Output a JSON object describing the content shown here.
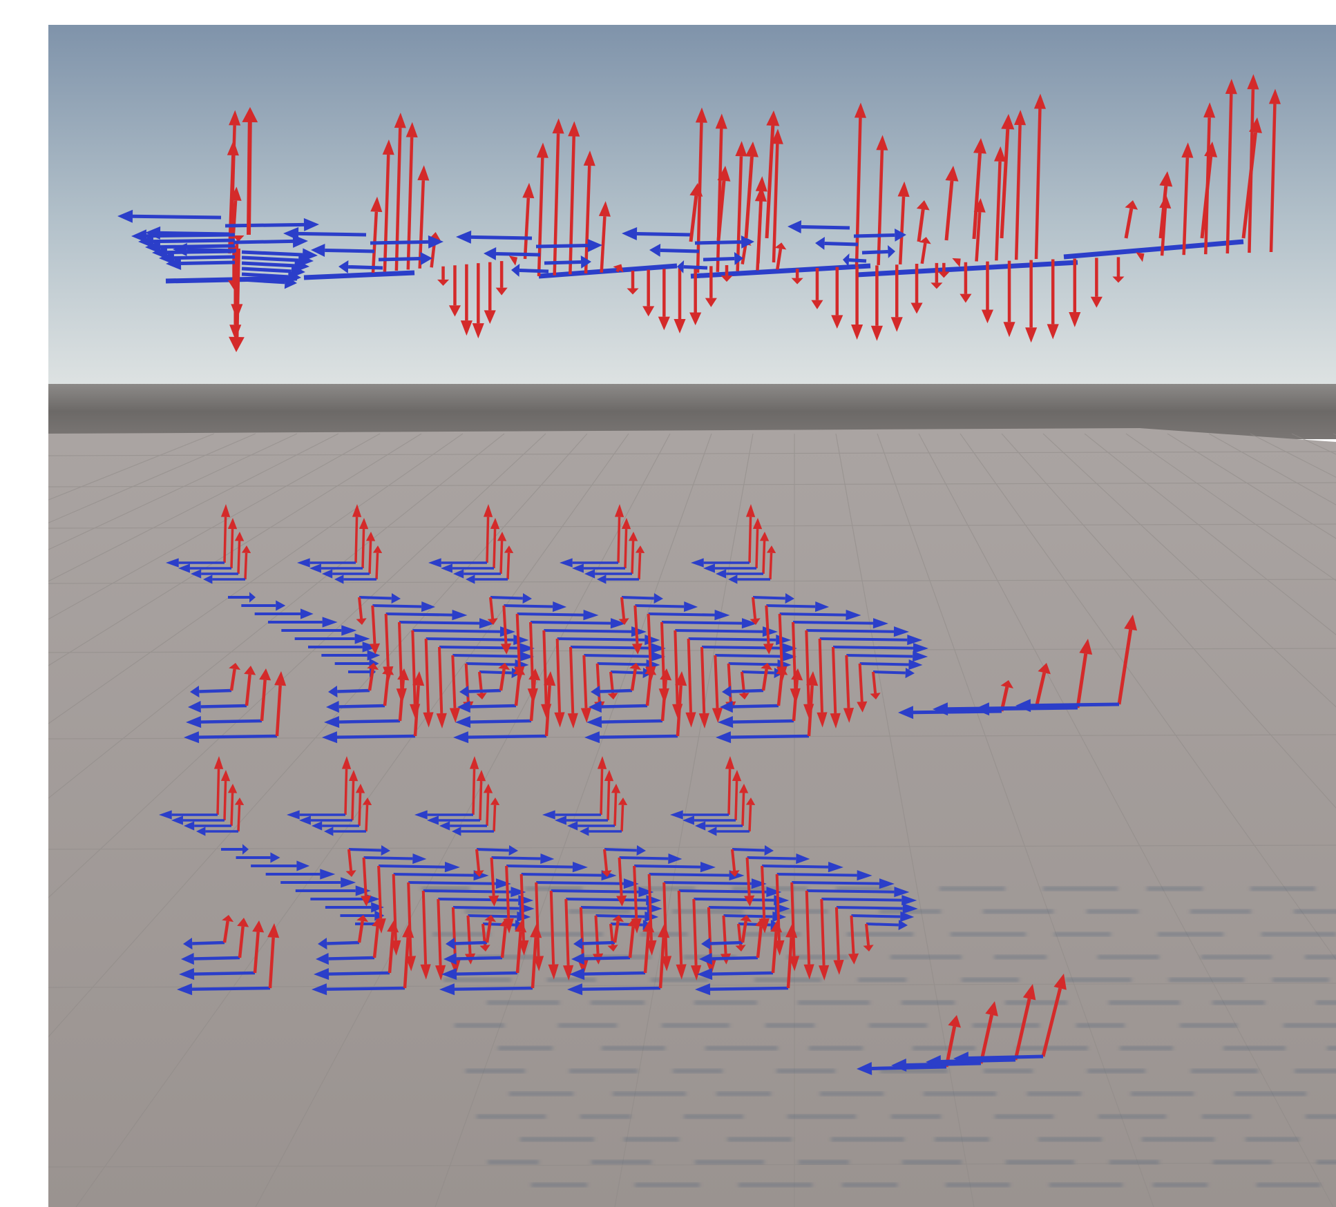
{
  "scene": {
    "type": "3d-viewport-render",
    "colors": {
      "page_background": "#ffffff",
      "sky_top": "#7f93aa",
      "sky_mid": "#b7c4cc",
      "horizon": "#d9dfe0",
      "distant_band": "#6e6b69",
      "ground_near": "#a49e9c",
      "ground_far": "#9c9591",
      "grid_line": "#8e8986",
      "shadow": "#4b5e78",
      "arrow_red": "#d42a2a",
      "arrow_blue": "#2b3ec9"
    },
    "icons": [
      "red-vertical-arrow",
      "blue-horizontal-arrow"
    ],
    "wave_groups": [
      {
        "name": "sky-wave-row",
        "count": 5
      },
      {
        "name": "ground-wave-row-1",
        "count": 5
      },
      {
        "name": "ground-wave-row-2",
        "count": 5
      }
    ]
  }
}
